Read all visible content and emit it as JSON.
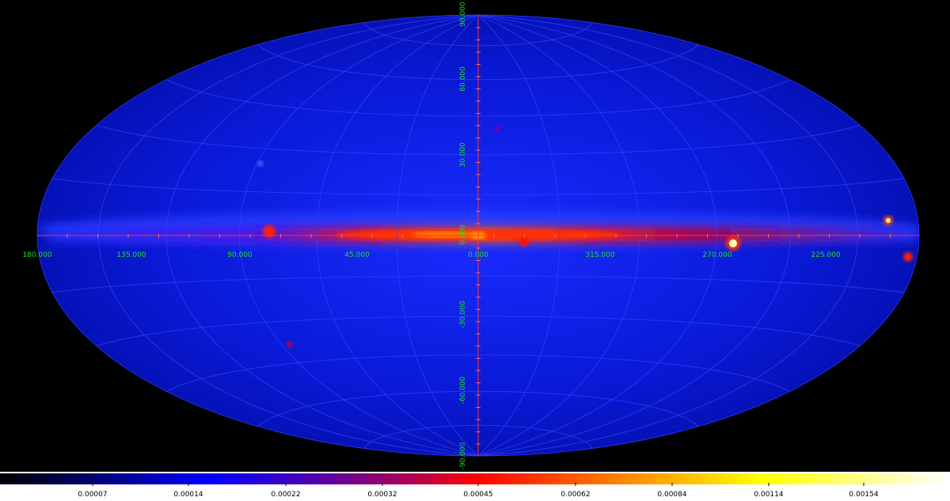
{
  "sky_map": {
    "longitude_labels": [
      "180.000",
      "135.000",
      "90.000",
      "45.000",
      "0.000",
      "315.000",
      "270.000",
      "225.000"
    ],
    "latitude_labels": [
      "90.000",
      "60.000",
      "30.000",
      "0.000",
      "-30.000",
      "-60.000",
      "-90.000"
    ]
  },
  "colorbar": {
    "labels": [
      "0.00007",
      "0.00014",
      "0.00022",
      "0.00032",
      "0.00045",
      "0.00062",
      "0.00084",
      "0.00114",
      "0.00154"
    ]
  }
}
